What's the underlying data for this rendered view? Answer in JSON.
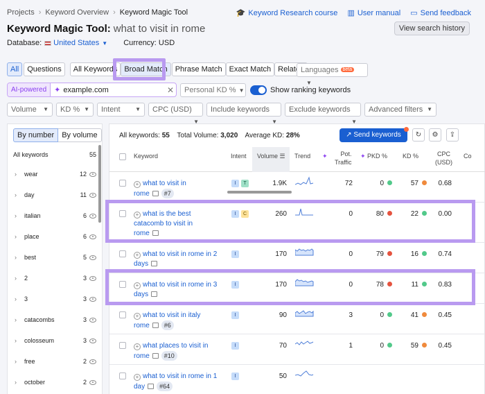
{
  "breadcrumb": [
    "Projects",
    "Keyword Overview",
    "Keyword Magic Tool"
  ],
  "header_links": [
    {
      "icon": "graduation-cap-icon",
      "label": "Keyword Research course"
    },
    {
      "icon": "book-icon",
      "label": "User manual"
    },
    {
      "icon": "chat-icon",
      "label": "Send feedback"
    }
  ],
  "title": "Keyword Magic Tool:",
  "query": "what to visit in rome",
  "view_history": "View search history",
  "database_label": "Database:",
  "database_value": "United States",
  "currency": "Currency: USD",
  "tabs": [
    "All",
    "Questions",
    "All Keywords",
    "Broad Match",
    "Phrase Match",
    "Exact Match",
    "Related"
  ],
  "languages": {
    "label": "Languages",
    "badge": "beta"
  },
  "ai": {
    "label": "AI-powered",
    "value": "example.com"
  },
  "personal_kd": "Personal KD %",
  "show_ranking": "Show ranking keywords",
  "filters": [
    "Volume",
    "KD %",
    "Intent",
    "CPC (USD)",
    "Include keywords",
    "Exclude keywords",
    "Advanced filters"
  ],
  "sidebar": {
    "by_number": "By number",
    "by_volume": "By volume",
    "all_label": "All keywords",
    "all_count": "55",
    "groups": [
      {
        "name": "wear",
        "count": "12"
      },
      {
        "name": "day",
        "count": "11"
      },
      {
        "name": "italian",
        "count": "6"
      },
      {
        "name": "place",
        "count": "6"
      },
      {
        "name": "best",
        "count": "5"
      },
      {
        "name": "2",
        "count": "3"
      },
      {
        "name": "3",
        "count": "3"
      },
      {
        "name": "catacombs",
        "count": "3"
      },
      {
        "name": "colosseum",
        "count": "3"
      },
      {
        "name": "free",
        "count": "2"
      },
      {
        "name": "october",
        "count": "2"
      }
    ]
  },
  "stats": {
    "all_label": "All keywords:",
    "all_value": "55",
    "volume_label": "Total Volume:",
    "volume_value": "3,020",
    "kd_label": "Average KD:",
    "kd_value": "28%"
  },
  "send_keywords": "Send keywords",
  "columns": {
    "keyword": "Keyword",
    "intent": "Intent",
    "volume": "Volume",
    "trend": "Trend",
    "pot_traffic_1": "Pot.",
    "pot_traffic_2": "Traffic",
    "pkd": "PKD %",
    "kd": "KD %",
    "cpc_1": "CPC",
    "cpc_2": "(USD)",
    "com": "Co"
  },
  "colors": {
    "red": "#e5533f",
    "green": "#52c98a",
    "orange": "#f08a3c",
    "accent": "#1a5fd1",
    "highlight": "#b99af0"
  },
  "rows": [
    {
      "kw1": "what to visit in",
      "kw2": "rome",
      "tag": "#7",
      "intent": [
        "I",
        "T"
      ],
      "volume": "1.9K",
      "pot": "72",
      "pkd": "0",
      "pkd_color": "green",
      "kd": "57",
      "kd_color": "orange",
      "cpc": "0.68"
    },
    {
      "kw1": "what is the best",
      "kw2": "catacomb to visit in",
      "kw3": "rome",
      "tag": "",
      "intent": [
        "I",
        "C"
      ],
      "volume": "260",
      "pot": "0",
      "pkd": "80",
      "pkd_color": "red",
      "kd": "22",
      "kd_color": "green",
      "cpc": "0.00"
    },
    {
      "kw1": "what to visit in rome in 2",
      "kw2": "days",
      "tag": "",
      "intent": [
        "I"
      ],
      "volume": "170",
      "pot": "0",
      "pkd": "79",
      "pkd_color": "red",
      "kd": "16",
      "kd_color": "green",
      "cpc": "0.74"
    },
    {
      "kw1": "what to visit in rome in 3",
      "kw2": "days",
      "tag": "",
      "intent": [
        "I"
      ],
      "volume": "170",
      "pot": "0",
      "pkd": "78",
      "pkd_color": "red",
      "kd": "11",
      "kd_color": "green",
      "cpc": "0.83"
    },
    {
      "kw1": "what to visit in italy",
      "kw2": "rome",
      "tag": "#6",
      "intent": [
        "I"
      ],
      "volume": "90",
      "pot": "3",
      "pkd": "0",
      "pkd_color": "green",
      "kd": "41",
      "kd_color": "orange",
      "cpc": "0.45"
    },
    {
      "kw1": "what places to visit in",
      "kw2": "rome",
      "tag": "#10",
      "intent": [
        "I"
      ],
      "volume": "70",
      "pot": "1",
      "pkd": "0",
      "pkd_color": "green",
      "kd": "59",
      "kd_color": "orange",
      "cpc": "0.45"
    },
    {
      "kw1": "what to visit in rome in 1",
      "kw2": "day",
      "tag": "#64",
      "intent": [
        "I"
      ],
      "volume": "50",
      "pot": "",
      "pkd": "",
      "pkd_color": "",
      "kd": "",
      "kd_color": "",
      "cpc": ""
    }
  ]
}
